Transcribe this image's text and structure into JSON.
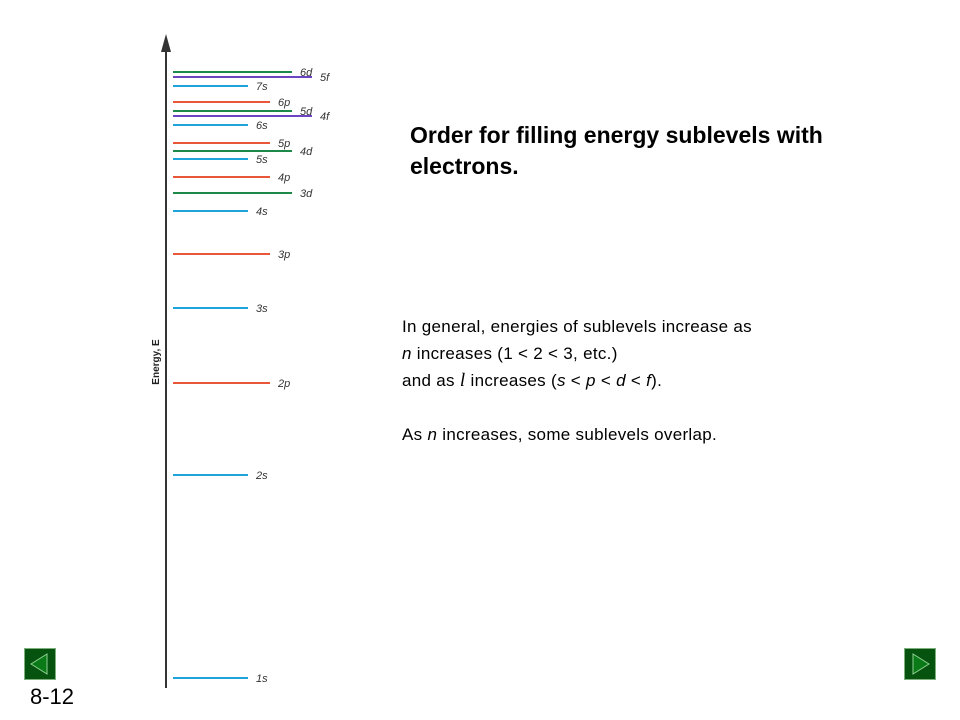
{
  "diagram": {
    "axis_label": "Energy, E",
    "colors": {
      "s": "#1ea3dd",
      "p": "#e8573a",
      "d": "#1e8a4a",
      "f": "#6b46c0",
      "axis": "#333333"
    },
    "levels": [
      {
        "label": "1s",
        "type": "s",
        "energy": 0
      },
      {
        "label": "2s",
        "type": "s",
        "energy": 203
      },
      {
        "label": "2p",
        "type": "p",
        "energy": 295
      },
      {
        "label": "3s",
        "type": "s",
        "energy": 370
      },
      {
        "label": "3p",
        "type": "p",
        "energy": 424
      },
      {
        "label": "4s",
        "type": "s",
        "energy": 467
      },
      {
        "label": "3d",
        "type": "d",
        "energy": 485
      },
      {
        "label": "4p",
        "type": "p",
        "energy": 501
      },
      {
        "label": "5s",
        "type": "s",
        "energy": 519
      },
      {
        "label": "4d",
        "type": "d",
        "energy": 527
      },
      {
        "label": "5p",
        "type": "p",
        "energy": 535
      },
      {
        "label": "6s",
        "type": "s",
        "energy": 553
      },
      {
        "label": "4f",
        "type": "f",
        "energy": 562
      },
      {
        "label": "5d",
        "type": "d",
        "energy": 567
      },
      {
        "label": "6p",
        "type": "p",
        "energy": 576
      },
      {
        "label": "7s",
        "type": "s",
        "energy": 592
      },
      {
        "label": "5f",
        "type": "f",
        "energy": 601
      },
      {
        "label": "6d",
        "type": "d",
        "energy": 606
      }
    ]
  },
  "title": "Order for filling energy sublevels with electrons.",
  "text": {
    "line1": "In general, energies of sublevels increase as",
    "line2_n": "n",
    "line2_rest": " increases (1 < 2 < 3, etc.)",
    "line3_a": "and as ",
    "line3_l": "l",
    "line3_b": " increases (",
    "line3_s": "s",
    "line3_lt1": " < ",
    "line3_p": "p",
    "line3_lt2": " < ",
    "line3_d": "d",
    "line3_lt3": " < ",
    "line3_f": "f",
    "line3_end": ").",
    "line4_a": "As ",
    "line4_n": "n",
    "line4_b": " increases, some sublevels overlap."
  },
  "slide_number": "8-12",
  "nav": {
    "prev_icon": "triangle-left-icon",
    "next_icon": "triangle-right-icon"
  }
}
